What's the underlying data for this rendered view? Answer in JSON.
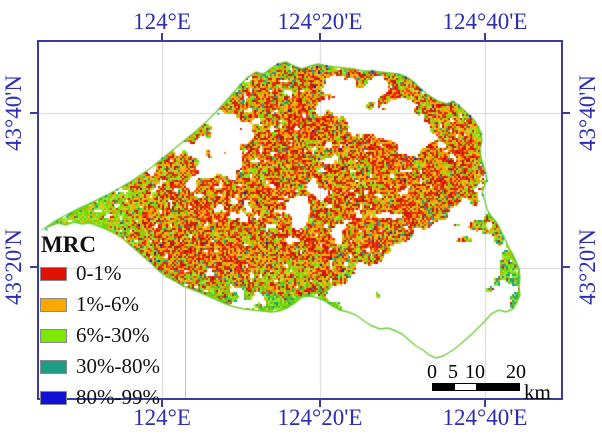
{
  "axes": {
    "top": [
      "124°E",
      "124°20'E",
      "124°40'E"
    ],
    "bottom": [
      "124°E",
      "124°20'E",
      "124°40'E"
    ],
    "left": [
      "43°40'N",
      "43°20'N"
    ],
    "right": [
      "43°40'N",
      "43°20'N"
    ]
  },
  "legend": {
    "title": "MRC",
    "items": [
      {
        "label": "0-1%",
        "color": "#df1202"
      },
      {
        "label": "1%-6%",
        "color": "#f9a801"
      },
      {
        "label": "6%-30%",
        "color": "#7de803"
      },
      {
        "label": "30%-80%",
        "color": "#1e9c86"
      },
      {
        "label": "80%-99%",
        "color": "#1111d6"
      }
    ]
  },
  "scalebar": {
    "ticks": [
      "0",
      "5",
      "10",
      "20"
    ],
    "unit": "km"
  },
  "map": {
    "frame_color": "#3c3c9e",
    "label_color": "#2d2db4",
    "grid_color": "#d6d6da",
    "background": "#ffffff",
    "palette": {
      "greens": [
        "#7dde02",
        "#8ce818",
        "#6fd206",
        "#98ef3c",
        "#5cc41e"
      ],
      "reds": [
        "#d91604",
        "#e62c0c",
        "#c41301",
        "#f03e12"
      ],
      "oranges": [
        "#f8a701",
        "#ffb71e",
        "#ec9a00"
      ],
      "teal": "#1f9e88",
      "blue": "#1212cf",
      "edge": "#63c92a"
    }
  }
}
